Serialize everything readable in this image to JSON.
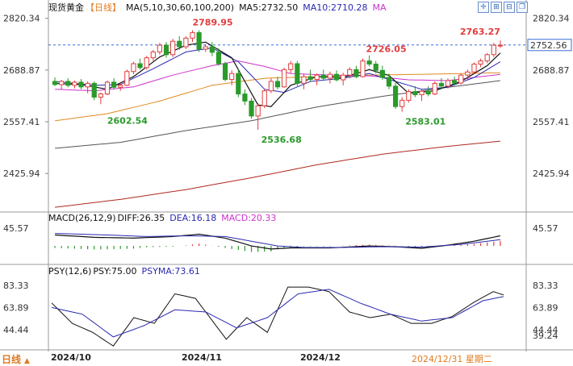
{
  "header": {
    "symbol": "现货黄金",
    "period_tag": "【日线】",
    "ma_label": "MA(5,10,30,60,100,200)",
    "ma5": "MA5:2732.50",
    "ma10": "MA10:2710.28",
    "ma_more": "MA"
  },
  "macd_header": {
    "label": "MACD(26,12,9)",
    "diff": "DIFF:26.35",
    "dea": "DEA:16.18",
    "macd": "MACD:20.33"
  },
  "psy_header": {
    "label": "PSY(12,6)",
    "psy": "PSY:75.00",
    "psyma": "PSYMA:73.61"
  },
  "bottom": {
    "period_button": "日线",
    "period_arrow": "▲",
    "x_ticks": [
      "2024/10",
      "2024/11",
      "2024/12"
    ],
    "date_readout": "2024/12/31 星期二"
  },
  "toolbar_icons": [
    "crosshair-icon",
    "zoom-in-icon",
    "zoom-out-icon",
    "restore-icon",
    "close-icon"
  ],
  "colors": {
    "up": "#e03c3c",
    "down": "#2a9a2a",
    "ma5": "#111111",
    "ma10": "#2a2ab0",
    "ma30": "#cc33cc",
    "ma60": "#e08a1e",
    "ma100": "#555555",
    "ma200": "#b0281e",
    "last_price_line": "#3a6bd8",
    "high_label": "#e03c3c",
    "low_label": "#2a9a2a"
  },
  "chart_data": {
    "type": "candlestick",
    "price_axis": {
      "ticks": [
        2820.34,
        2688.87,
        2557.41,
        2425.94
      ],
      "ylim": [
        2330,
        2830
      ],
      "last_price": 2752.56
    },
    "annotations": [
      {
        "label": "2789.95",
        "type": "high"
      },
      {
        "label": "2763.27",
        "type": "high"
      },
      {
        "label": "2726.05",
        "type": "high"
      },
      {
        "label": "2602.54",
        "type": "low"
      },
      {
        "label": "2536.68",
        "type": "low"
      },
      {
        "label": "2583.01",
        "type": "low"
      }
    ],
    "candles": [
      [
        2660,
        2670,
        2648,
        2652
      ],
      [
        2652,
        2664,
        2640,
        2660
      ],
      [
        2660,
        2668,
        2645,
        2650
      ],
      [
        2650,
        2662,
        2642,
        2658
      ],
      [
        2658,
        2666,
        2640,
        2646
      ],
      [
        2646,
        2660,
        2630,
        2655
      ],
      [
        2655,
        2660,
        2612,
        2620
      ],
      [
        2620,
        2632,
        2602,
        2628
      ],
      [
        2628,
        2662,
        2625,
        2658
      ],
      [
        2658,
        2668,
        2640,
        2645
      ],
      [
        2645,
        2656,
        2636,
        2650
      ],
      [
        2650,
        2690,
        2648,
        2685
      ],
      [
        2685,
        2710,
        2678,
        2705
      ],
      [
        2705,
        2718,
        2690,
        2695
      ],
      [
        2695,
        2725,
        2690,
        2720
      ],
      [
        2720,
        2740,
        2712,
        2735
      ],
      [
        2735,
        2758,
        2728,
        2752
      ],
      [
        2752,
        2760,
        2720,
        2728
      ],
      [
        2728,
        2768,
        2722,
        2762
      ],
      [
        2762,
        2775,
        2740,
        2748
      ],
      [
        2748,
        2775,
        2742,
        2770
      ],
      [
        2770,
        2790,
        2760,
        2784
      ],
      [
        2784,
        2790,
        2735,
        2742
      ],
      [
        2742,
        2755,
        2735,
        2748
      ],
      [
        2748,
        2760,
        2724,
        2734
      ],
      [
        2734,
        2744,
        2700,
        2705
      ],
      [
        2705,
        2710,
        2660,
        2665
      ],
      [
        2665,
        2688,
        2650,
        2680
      ],
      [
        2680,
        2690,
        2620,
        2628
      ],
      [
        2628,
        2640,
        2600,
        2610
      ],
      [
        2610,
        2618,
        2565,
        2572
      ],
      [
        2572,
        2605,
        2537,
        2598
      ],
      [
        2598,
        2640,
        2592,
        2636
      ],
      [
        2636,
        2668,
        2630,
        2660
      ],
      [
        2660,
        2672,
        2640,
        2646
      ],
      [
        2646,
        2695,
        2644,
        2690
      ],
      [
        2690,
        2712,
        2680,
        2705
      ],
      [
        2705,
        2712,
        2648,
        2655
      ],
      [
        2655,
        2680,
        2640,
        2672
      ],
      [
        2672,
        2690,
        2660,
        2665
      ],
      [
        2665,
        2680,
        2650,
        2676
      ],
      [
        2676,
        2690,
        2662,
        2668
      ],
      [
        2668,
        2685,
        2655,
        2678
      ],
      [
        2678,
        2688,
        2660,
        2664
      ],
      [
        2664,
        2682,
        2650,
        2676
      ],
      [
        2676,
        2696,
        2668,
        2690
      ],
      [
        2690,
        2700,
        2668,
        2672
      ],
      [
        2672,
        2718,
        2670,
        2712
      ],
      [
        2712,
        2726,
        2698,
        2704
      ],
      [
        2704,
        2712,
        2680,
        2688
      ],
      [
        2688,
        2700,
        2664,
        2670
      ],
      [
        2670,
        2680,
        2640,
        2648
      ],
      [
        2648,
        2660,
        2590,
        2596
      ],
      [
        2596,
        2620,
        2583,
        2612
      ],
      [
        2612,
        2640,
        2606,
        2634
      ],
      [
        2634,
        2648,
        2620,
        2626
      ],
      [
        2626,
        2640,
        2610,
        2635
      ],
      [
        2635,
        2648,
        2622,
        2628
      ],
      [
        2628,
        2660,
        2625,
        2655
      ],
      [
        2655,
        2668,
        2640,
        2648
      ],
      [
        2648,
        2668,
        2642,
        2662
      ],
      [
        2662,
        2672,
        2650,
        2656
      ],
      [
        2656,
        2680,
        2652,
        2676
      ],
      [
        2676,
        2690,
        2665,
        2684
      ],
      [
        2684,
        2708,
        2678,
        2704
      ],
      [
        2704,
        2718,
        2696,
        2712
      ],
      [
        2712,
        2732,
        2706,
        2728
      ],
      [
        2728,
        2758,
        2722,
        2752
      ],
      [
        2752,
        2764,
        2745,
        2752
      ]
    ],
    "ma_anchors": {
      "ma5": [
        [
          0,
          2655
        ],
        [
          4,
          2652
        ],
        [
          8,
          2640
        ],
        [
          12,
          2672
        ],
        [
          16,
          2722
        ],
        [
          20,
          2752
        ],
        [
          23,
          2760
        ],
        [
          27,
          2720
        ],
        [
          31,
          2600
        ],
        [
          33,
          2596
        ],
        [
          36,
          2650
        ],
        [
          40,
          2672
        ],
        [
          44,
          2670
        ],
        [
          48,
          2690
        ],
        [
          51,
          2675
        ],
        [
          54,
          2630
        ],
        [
          58,
          2636
        ],
        [
          62,
          2660
        ],
        [
          66,
          2700
        ],
        [
          68,
          2732
        ]
      ],
      "ma10": [
        [
          0,
          2660
        ],
        [
          6,
          2650
        ],
        [
          10,
          2652
        ],
        [
          15,
          2692
        ],
        [
          20,
          2735
        ],
        [
          24,
          2745
        ],
        [
          28,
          2710
        ],
        [
          32,
          2640
        ],
        [
          35,
          2632
        ],
        [
          39,
          2660
        ],
        [
          44,
          2668
        ],
        [
          48,
          2680
        ],
        [
          52,
          2660
        ],
        [
          56,
          2640
        ],
        [
          60,
          2645
        ],
        [
          64,
          2670
        ],
        [
          68,
          2710
        ]
      ],
      "ma30": [
        [
          0,
          2640
        ],
        [
          6,
          2636
        ],
        [
          12,
          2646
        ],
        [
          18,
          2676
        ],
        [
          24,
          2700
        ],
        [
          28,
          2712
        ],
        [
          32,
          2698
        ],
        [
          36,
          2680
        ],
        [
          42,
          2676
        ],
        [
          48,
          2674
        ],
        [
          54,
          2664
        ],
        [
          60,
          2662
        ],
        [
          68,
          2678
        ]
      ],
      "ma60": [
        [
          0,
          2560
        ],
        [
          8,
          2578
        ],
        [
          16,
          2610
        ],
        [
          24,
          2650
        ],
        [
          32,
          2668
        ],
        [
          40,
          2672
        ],
        [
          48,
          2676
        ],
        [
          56,
          2678
        ],
        [
          62,
          2680
        ],
        [
          68,
          2682
        ]
      ],
      "ma100": [
        [
          0,
          2490
        ],
        [
          10,
          2505
        ],
        [
          20,
          2535
        ],
        [
          30,
          2560
        ],
        [
          40,
          2595
        ],
        [
          50,
          2622
        ],
        [
          60,
          2645
        ],
        [
          68,
          2662
        ]
      ],
      "ma200": [
        [
          0,
          2340
        ],
        [
          10,
          2360
        ],
        [
          20,
          2385
        ],
        [
          30,
          2415
        ],
        [
          40,
          2448
        ],
        [
          50,
          2475
        ],
        [
          60,
          2495
        ],
        [
          68,
          2508
        ]
      ]
    },
    "macd": {
      "ticks": [
        45.57
      ],
      "ylim": [
        -35,
        60
      ],
      "diff_anchors": [
        [
          0,
          28
        ],
        [
          6,
          22
        ],
        [
          12,
          20
        ],
        [
          18,
          24
        ],
        [
          22,
          30
        ],
        [
          26,
          20
        ],
        [
          30,
          0
        ],
        [
          33,
          -8
        ],
        [
          36,
          -5
        ],
        [
          42,
          -5
        ],
        [
          48,
          0
        ],
        [
          52,
          -2
        ],
        [
          56,
          -6
        ],
        [
          60,
          2
        ],
        [
          64,
          12
        ],
        [
          68,
          26
        ]
      ],
      "dea_anchors": [
        [
          0,
          32
        ],
        [
          8,
          28
        ],
        [
          14,
          24
        ],
        [
          20,
          26
        ],
        [
          26,
          24
        ],
        [
          30,
          12
        ],
        [
          34,
          0
        ],
        [
          38,
          -4
        ],
        [
          44,
          -4
        ],
        [
          50,
          -2
        ],
        [
          56,
          -3
        ],
        [
          62,
          4
        ],
        [
          68,
          16
        ]
      ]
    },
    "psy": {
      "ticks": [
        83.33,
        63.89,
        44.44
      ],
      "ylim": [
        28,
        92
      ],
      "psy_anchors": [
        [
          0,
          68
        ],
        [
          4,
          50
        ],
        [
          8,
          42
        ],
        [
          12,
          30
        ],
        [
          16,
          55
        ],
        [
          20,
          50
        ],
        [
          24,
          76
        ],
        [
          28,
          72
        ],
        [
          30,
          60
        ],
        [
          34,
          36
        ],
        [
          38,
          55
        ],
        [
          42,
          42
        ],
        [
          46,
          82
        ],
        [
          50,
          82
        ],
        [
          54,
          78
        ],
        [
          58,
          60
        ],
        [
          62,
          55
        ],
        [
          66,
          58
        ],
        [
          70,
          50
        ],
        [
          74,
          50
        ],
        [
          78,
          56
        ],
        [
          82,
          68
        ],
        [
          86,
          78
        ],
        [
          88,
          75
        ]
      ],
      "psyma_anchors": [
        [
          0,
          64
        ],
        [
          6,
          58
        ],
        [
          12,
          38
        ],
        [
          18,
          48
        ],
        [
          24,
          62
        ],
        [
          30,
          60
        ],
        [
          36,
          46
        ],
        [
          42,
          55
        ],
        [
          48,
          76
        ],
        [
          54,
          80
        ],
        [
          60,
          68
        ],
        [
          66,
          58
        ],
        [
          72,
          52
        ],
        [
          78,
          55
        ],
        [
          84,
          70
        ],
        [
          88,
          73.61
        ]
      ],
      "extra_label": "39.24"
    }
  }
}
